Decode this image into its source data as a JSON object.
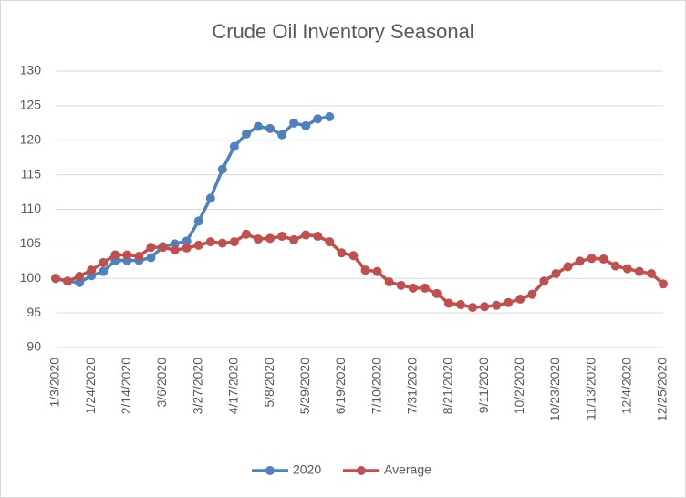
{
  "chart_data": {
    "type": "line",
    "title": "Crude Oil Inventory Seasonal",
    "categories": [
      "1/3/2020",
      null,
      null,
      "1/24/2020",
      null,
      null,
      "2/14/2020",
      null,
      null,
      "3/6/2020",
      null,
      null,
      "3/27/2020",
      null,
      null,
      "4/17/2020",
      null,
      null,
      "5/8/2020",
      null,
      null,
      "5/29/2020",
      null,
      null,
      "6/19/2020",
      null,
      null,
      "7/10/2020",
      null,
      null,
      "7/31/2020",
      null,
      null,
      "8/21/2020",
      null,
      null,
      "9/11/2020",
      null,
      null,
      "10/2/2020",
      null,
      null,
      "10/23/2020",
      null,
      null,
      "11/13/2020",
      null,
      null,
      "12/4/2020",
      null,
      null,
      "12/25/2020"
    ],
    "series": [
      {
        "name": "2020",
        "color": "#4f81bd",
        "values": [
          100,
          99.6,
          99.4,
          100.4,
          101,
          102.6,
          102.6,
          102.6,
          103,
          104.6,
          105,
          105.4,
          108.3,
          111.6,
          115.8,
          119.1,
          120.9,
          122,
          121.7,
          120.8,
          122.5,
          122.1,
          123.1,
          123.4,
          null,
          null,
          null,
          null,
          null,
          null,
          null,
          null,
          null,
          null,
          null,
          null,
          null,
          null,
          null,
          null,
          null,
          null,
          null,
          null,
          null,
          null,
          null,
          null,
          null,
          null,
          null,
          null
        ]
      },
      {
        "name": "Average",
        "color": "#c0504d",
        "values": [
          100,
          99.6,
          100.3,
          101.2,
          102.3,
          103.4,
          103.4,
          103.2,
          104.5,
          104.5,
          104.1,
          104.4,
          104.8,
          105.3,
          105.1,
          105.3,
          106.4,
          105.7,
          105.8,
          106.1,
          105.6,
          106.3,
          106.1,
          105.3,
          103.7,
          103.3,
          101.2,
          101,
          99.5,
          99,
          98.6,
          98.6,
          97.8,
          96.4,
          96.2,
          95.8,
          95.9,
          96.1,
          96.5,
          97,
          97.7,
          99.6,
          100.7,
          101.7,
          102.5,
          102.9,
          102.8,
          101.8,
          101.4,
          101,
          100.7,
          99.2
        ]
      }
    ],
    "ylim": [
      90,
      130
    ],
    "yticks": [
      90,
      95,
      100,
      105,
      110,
      115,
      120,
      125,
      130
    ],
    "grid": true,
    "legend": "bottom"
  }
}
